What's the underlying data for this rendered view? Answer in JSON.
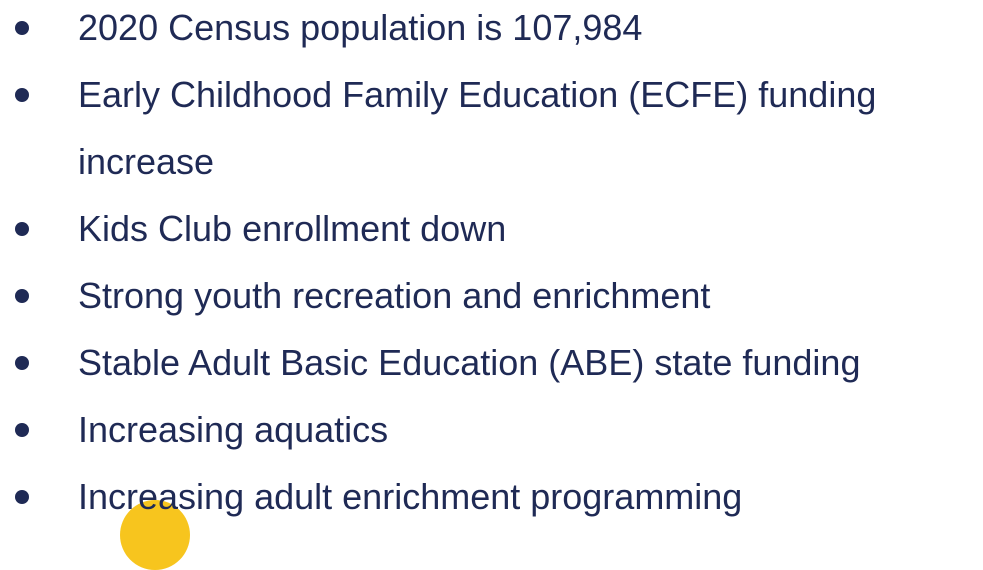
{
  "items": [
    "2020 Census population is 107,984",
    "Early Childhood Family Education (ECFE) funding increase",
    "Kids Club enrollment down",
    "Strong youth recreation and enrichment",
    "Stable Adult Basic Education (ABE) state funding",
    "Increasing aquatics",
    "Increasing adult enrichment programming"
  ]
}
